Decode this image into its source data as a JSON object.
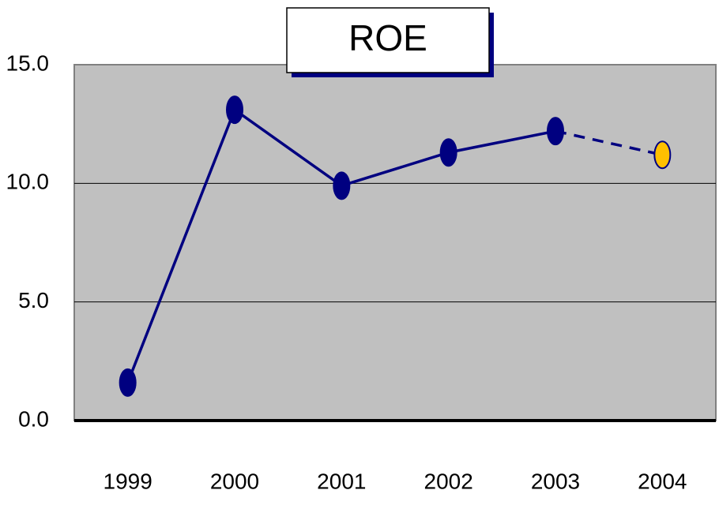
{
  "chart_data": {
    "type": "line",
    "title": "ROE",
    "categories": [
      "1999",
      "2000",
      "2001",
      "2002",
      "2003",
      "2004"
    ],
    "values": [
      1.6,
      13.1,
      9.9,
      11.3,
      12.2,
      11.2
    ],
    "color": "#000080",
    "last_marker_color": "#ffc000",
    "last_segment_style": "dashed",
    "ylim": [
      0,
      15
    ],
    "yticks": [
      {
        "value": 0,
        "label": "0.0"
      },
      {
        "value": 5,
        "label": "5.0"
      },
      {
        "value": 10,
        "label": "10.0"
      },
      {
        "value": 15,
        "label": "15.0"
      }
    ],
    "grid": true,
    "background": "#c0c0c0"
  }
}
